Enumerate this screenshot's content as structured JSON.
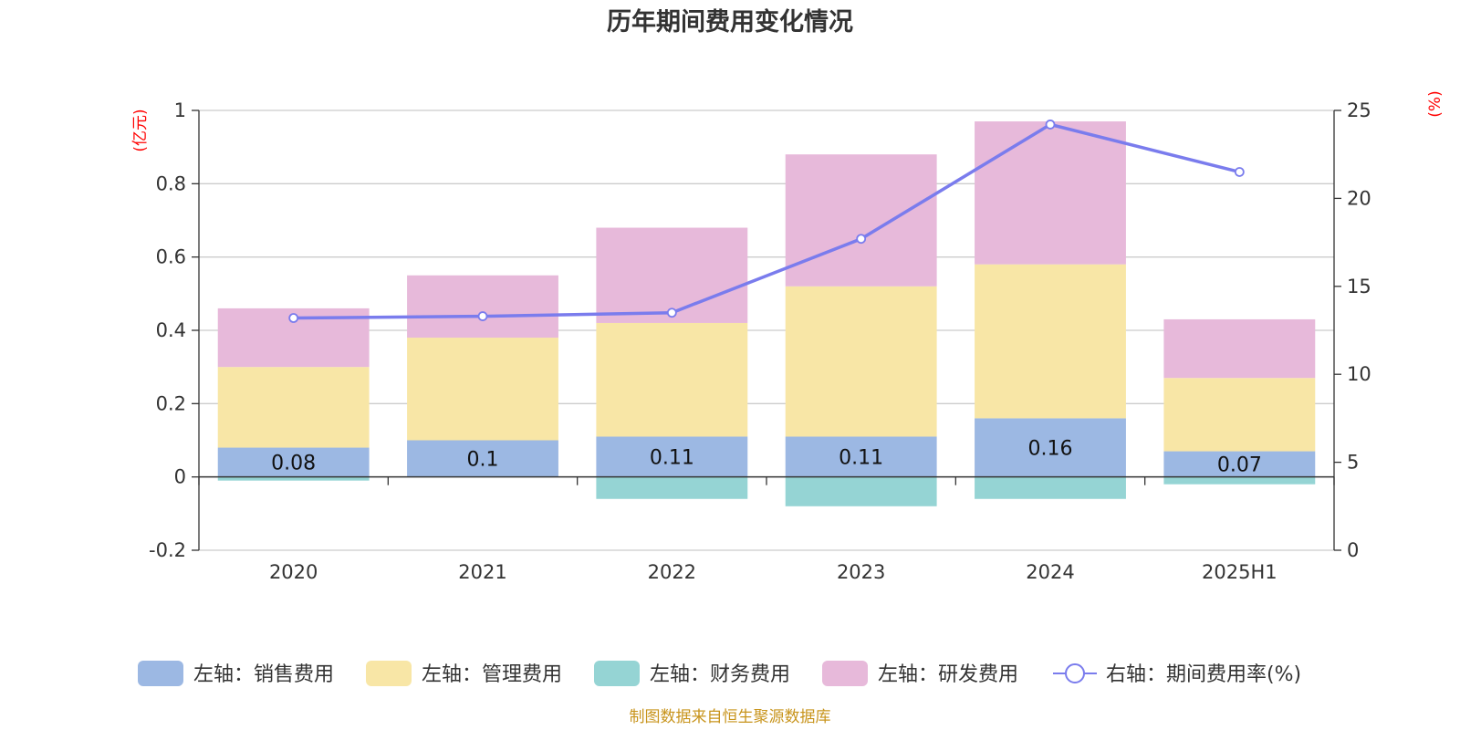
{
  "chart_data": {
    "type": "bar",
    "title": "历年期间费用变化情况",
    "categories": [
      "2020",
      "2021",
      "2022",
      "2023",
      "2024",
      "2025H1"
    ],
    "left_axis": {
      "unit": "(亿元)",
      "ylim": [
        -0.2,
        1
      ],
      "ticks": [
        "1",
        "0.8",
        "0.6",
        "0.4",
        "0.2",
        "0",
        "-0.2"
      ]
    },
    "right_axis": {
      "unit": "(%)",
      "ylim": [
        0,
        25
      ],
      "ticks": [
        "25",
        "20",
        "15",
        "10",
        "5",
        "0"
      ]
    },
    "series": [
      {
        "name": "左轴：销售费用",
        "type": "bar",
        "axis": "left",
        "color": "#9cb8e3",
        "values": [
          0.08,
          0.1,
          0.11,
          0.11,
          0.16,
          0.07
        ],
        "labels": [
          "0.08",
          "0.1",
          "0.11",
          "0.11",
          "0.16",
          "0.07"
        ]
      },
      {
        "name": "左轴：管理费用",
        "type": "bar",
        "axis": "left",
        "color": "#f8e6a6",
        "values": [
          0.22,
          0.28,
          0.31,
          0.41,
          0.42,
          0.2
        ]
      },
      {
        "name": "左轴：财务费用",
        "type": "bar",
        "axis": "left",
        "color": "#95d4d4",
        "values": [
          -0.01,
          0.0,
          -0.06,
          -0.08,
          -0.06,
          -0.02
        ]
      },
      {
        "name": "左轴：研发费用",
        "type": "bar",
        "axis": "left",
        "color": "#e7b9da",
        "values": [
          0.16,
          0.17,
          0.26,
          0.36,
          0.39,
          0.16
        ]
      },
      {
        "name": "右轴：期间费用率(%)",
        "type": "line",
        "axis": "right",
        "color": "#7a7ced",
        "values": [
          13.2,
          13.3,
          13.5,
          17.7,
          24.2,
          21.5
        ]
      }
    ],
    "grid": true,
    "legend_position": "bottom"
  },
  "source_note": "制图数据来自恒生聚源数据库"
}
